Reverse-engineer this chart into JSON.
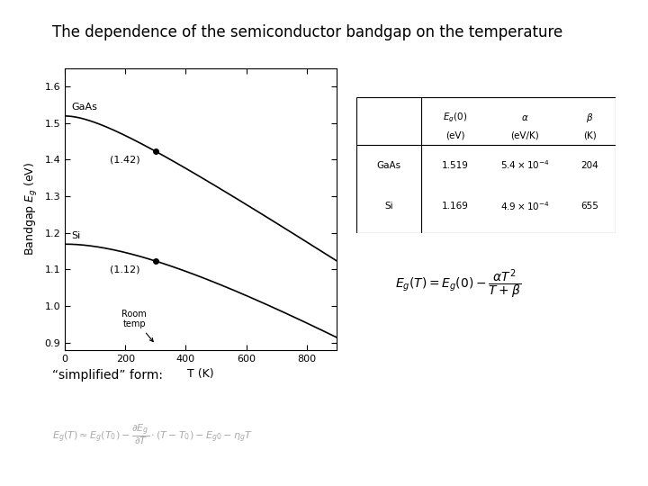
{
  "title": "The dependence of the semiconductor bandgap on the temperature",
  "title_fontsize": 12,
  "GaAs": {
    "Eg0": 1.519,
    "alpha": 0.00054,
    "beta": 204
  },
  "Si": {
    "Eg0": 1.169,
    "alpha": 0.00049,
    "beta": 655
  },
  "T_range": [
    0,
    900
  ],
  "T_room": 300,
  "xlim": [
    0,
    900
  ],
  "ylim": [
    0.88,
    1.65
  ],
  "xticks": [
    0,
    200,
    400,
    600,
    800
  ],
  "yticks": [
    0.9,
    1.0,
    1.1,
    1.2,
    1.3,
    1.4,
    1.5,
    1.6
  ],
  "xlabel": "T (K)",
  "ylabel": "Bandgap $E_g$ (eV)",
  "plot_color": "#000000",
  "bg_color": "#ffffff",
  "fig_bg_color": "#ffffff",
  "simplified_text": "“simplified” form:"
}
